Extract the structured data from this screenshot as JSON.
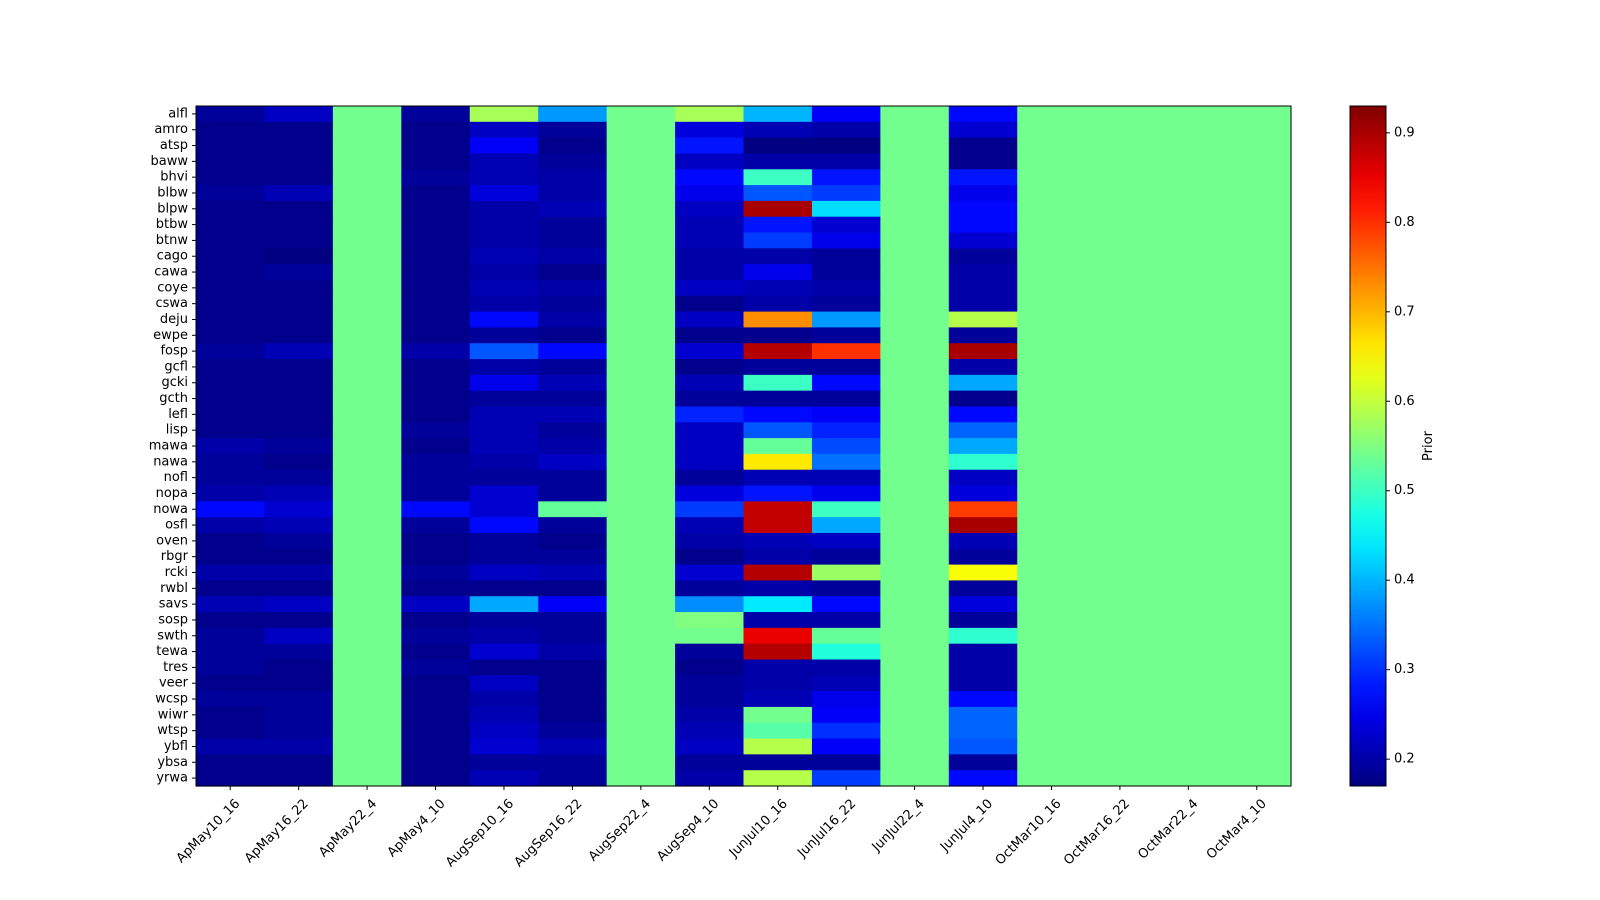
{
  "chart_data": {
    "type": "heatmap",
    "title": "",
    "xlabel": "",
    "ylabel": "",
    "colormap": "jet",
    "x_labels": [
      "ApMay10_16",
      "ApMay16_22",
      "ApMay22_4",
      "ApMay4_10",
      "AugSep10_16",
      "AugSep16_22",
      "AugSep22_4",
      "AugSep4_10",
      "JunJul10_16",
      "JunJul16_22",
      "JunJul22_4",
      "JunJul4_10",
      "OctMar10_16",
      "OctMar16_22",
      "OctMar22_4",
      "OctMar4_10"
    ],
    "y_labels": [
      "alfl",
      "amro",
      "atsp",
      "baww",
      "bhvi",
      "blbw",
      "blpw",
      "btbw",
      "btnw",
      "cago",
      "cawa",
      "coye",
      "cswa",
      "deju",
      "ewpe",
      "fosp",
      "gcfl",
      "gcki",
      "gcth",
      "lefl",
      "lisp",
      "mawa",
      "nawa",
      "nofl",
      "nopa",
      "nowa",
      "osfl",
      "oven",
      "rbgr",
      "rcki",
      "rwbl",
      "savs",
      "sosp",
      "swth",
      "tewa",
      "tres",
      "veer",
      "wcsp",
      "wiwr",
      "wtsp",
      "ybfl",
      "ybsa",
      "yrwa"
    ],
    "values": [
      [
        0.19,
        0.22,
        0.54,
        0.19,
        0.58,
        0.38,
        0.54,
        0.58,
        0.4,
        0.26,
        0.54,
        0.27,
        0.54,
        0.54,
        0.54,
        0.54
      ],
      [
        0.18,
        0.18,
        0.54,
        0.18,
        0.22,
        0.19,
        0.54,
        0.24,
        0.21,
        0.2,
        0.54,
        0.23,
        0.54,
        0.54,
        0.54,
        0.54
      ],
      [
        0.18,
        0.18,
        0.54,
        0.18,
        0.26,
        0.18,
        0.54,
        0.28,
        0.17,
        0.17,
        0.54,
        0.18,
        0.54,
        0.54,
        0.54,
        0.54
      ],
      [
        0.18,
        0.18,
        0.54,
        0.18,
        0.21,
        0.19,
        0.54,
        0.22,
        0.2,
        0.2,
        0.54,
        0.18,
        0.54,
        0.54,
        0.54,
        0.54
      ],
      [
        0.18,
        0.18,
        0.54,
        0.19,
        0.21,
        0.2,
        0.54,
        0.27,
        0.5,
        0.28,
        0.54,
        0.28,
        0.54,
        0.54,
        0.54,
        0.54
      ],
      [
        0.19,
        0.21,
        0.54,
        0.18,
        0.24,
        0.2,
        0.54,
        0.25,
        0.33,
        0.31,
        0.54,
        0.25,
        0.54,
        0.54,
        0.54,
        0.54
      ],
      [
        0.18,
        0.18,
        0.54,
        0.18,
        0.2,
        0.21,
        0.54,
        0.22,
        0.9,
        0.43,
        0.54,
        0.27,
        0.54,
        0.54,
        0.54,
        0.54
      ],
      [
        0.18,
        0.18,
        0.54,
        0.18,
        0.2,
        0.19,
        0.54,
        0.21,
        0.28,
        0.23,
        0.54,
        0.27,
        0.54,
        0.54,
        0.54,
        0.54
      ],
      [
        0.18,
        0.18,
        0.54,
        0.18,
        0.2,
        0.19,
        0.54,
        0.21,
        0.31,
        0.25,
        0.54,
        0.23,
        0.54,
        0.54,
        0.54,
        0.54
      ],
      [
        0.18,
        0.17,
        0.54,
        0.18,
        0.21,
        0.2,
        0.54,
        0.2,
        0.2,
        0.19,
        0.54,
        0.19,
        0.54,
        0.54,
        0.54,
        0.54
      ],
      [
        0.18,
        0.19,
        0.54,
        0.18,
        0.2,
        0.18,
        0.54,
        0.2,
        0.25,
        0.19,
        0.54,
        0.2,
        0.54,
        0.54,
        0.54,
        0.54
      ],
      [
        0.18,
        0.18,
        0.54,
        0.18,
        0.21,
        0.2,
        0.54,
        0.22,
        0.21,
        0.2,
        0.54,
        0.2,
        0.54,
        0.54,
        0.54,
        0.54
      ],
      [
        0.18,
        0.18,
        0.54,
        0.18,
        0.2,
        0.19,
        0.54,
        0.18,
        0.2,
        0.19,
        0.54,
        0.2,
        0.54,
        0.54,
        0.54,
        0.54
      ],
      [
        0.18,
        0.18,
        0.54,
        0.18,
        0.27,
        0.2,
        0.54,
        0.22,
        0.73,
        0.38,
        0.54,
        0.59,
        0.54,
        0.54,
        0.54,
        0.54
      ],
      [
        0.18,
        0.18,
        0.54,
        0.18,
        0.19,
        0.18,
        0.54,
        0.18,
        0.18,
        0.19,
        0.54,
        0.19,
        0.54,
        0.54,
        0.54,
        0.54
      ],
      [
        0.19,
        0.21,
        0.54,
        0.2,
        0.33,
        0.27,
        0.54,
        0.23,
        0.89,
        0.8,
        0.54,
        0.9,
        0.54,
        0.54,
        0.54,
        0.54
      ],
      [
        0.18,
        0.18,
        0.54,
        0.18,
        0.2,
        0.19,
        0.54,
        0.18,
        0.19,
        0.19,
        0.54,
        0.2,
        0.54,
        0.54,
        0.54,
        0.54
      ],
      [
        0.18,
        0.18,
        0.54,
        0.18,
        0.25,
        0.21,
        0.54,
        0.21,
        0.5,
        0.27,
        0.54,
        0.39,
        0.54,
        0.54,
        0.54,
        0.54
      ],
      [
        0.18,
        0.18,
        0.54,
        0.18,
        0.19,
        0.19,
        0.54,
        0.19,
        0.19,
        0.19,
        0.54,
        0.18,
        0.54,
        0.54,
        0.54,
        0.54
      ],
      [
        0.18,
        0.18,
        0.54,
        0.18,
        0.21,
        0.21,
        0.54,
        0.29,
        0.27,
        0.26,
        0.54,
        0.27,
        0.54,
        0.54,
        0.54,
        0.54
      ],
      [
        0.18,
        0.18,
        0.54,
        0.19,
        0.21,
        0.19,
        0.54,
        0.22,
        0.33,
        0.29,
        0.54,
        0.34,
        0.54,
        0.54,
        0.54,
        0.54
      ],
      [
        0.2,
        0.19,
        0.54,
        0.18,
        0.21,
        0.2,
        0.54,
        0.22,
        0.53,
        0.32,
        0.54,
        0.39,
        0.54,
        0.54,
        0.54,
        0.54
      ],
      [
        0.19,
        0.18,
        0.54,
        0.19,
        0.2,
        0.22,
        0.54,
        0.22,
        0.66,
        0.35,
        0.54,
        0.49,
        0.54,
        0.54,
        0.54,
        0.54
      ],
      [
        0.19,
        0.19,
        0.54,
        0.19,
        0.19,
        0.19,
        0.54,
        0.19,
        0.21,
        0.21,
        0.54,
        0.22,
        0.54,
        0.54,
        0.54,
        0.54
      ],
      [
        0.2,
        0.21,
        0.54,
        0.19,
        0.23,
        0.19,
        0.54,
        0.24,
        0.28,
        0.25,
        0.54,
        0.24,
        0.54,
        0.54,
        0.54,
        0.54
      ],
      [
        0.27,
        0.23,
        0.54,
        0.27,
        0.23,
        0.53,
        0.54,
        0.31,
        0.88,
        0.5,
        0.54,
        0.79,
        0.54,
        0.54,
        0.54,
        0.54
      ],
      [
        0.2,
        0.21,
        0.54,
        0.19,
        0.27,
        0.19,
        0.54,
        0.21,
        0.88,
        0.39,
        0.54,
        0.9,
        0.54,
        0.54,
        0.54,
        0.54
      ],
      [
        0.18,
        0.19,
        0.54,
        0.18,
        0.19,
        0.18,
        0.54,
        0.2,
        0.21,
        0.22,
        0.54,
        0.21,
        0.54,
        0.54,
        0.54,
        0.54
      ],
      [
        0.18,
        0.18,
        0.54,
        0.18,
        0.19,
        0.19,
        0.54,
        0.18,
        0.2,
        0.19,
        0.54,
        0.19,
        0.54,
        0.54,
        0.54,
        0.54
      ],
      [
        0.2,
        0.2,
        0.54,
        0.19,
        0.22,
        0.21,
        0.54,
        0.23,
        0.89,
        0.57,
        0.54,
        0.64,
        0.54,
        0.54,
        0.54,
        0.54
      ],
      [
        0.18,
        0.18,
        0.54,
        0.18,
        0.18,
        0.18,
        0.54,
        0.19,
        0.2,
        0.19,
        0.54,
        0.19,
        0.54,
        0.54,
        0.54,
        0.54
      ],
      [
        0.21,
        0.22,
        0.54,
        0.22,
        0.39,
        0.26,
        0.54,
        0.37,
        0.44,
        0.27,
        0.54,
        0.24,
        0.54,
        0.54,
        0.54,
        0.54
      ],
      [
        0.18,
        0.18,
        0.54,
        0.18,
        0.19,
        0.19,
        0.54,
        0.55,
        0.2,
        0.2,
        0.54,
        0.19,
        0.54,
        0.54,
        0.54,
        0.54
      ],
      [
        0.19,
        0.22,
        0.54,
        0.19,
        0.2,
        0.19,
        0.54,
        0.54,
        0.85,
        0.53,
        0.54,
        0.49,
        0.54,
        0.54,
        0.54,
        0.54
      ],
      [
        0.19,
        0.19,
        0.54,
        0.18,
        0.23,
        0.2,
        0.54,
        0.19,
        0.89,
        0.48,
        0.54,
        0.2,
        0.54,
        0.54,
        0.54,
        0.54
      ],
      [
        0.19,
        0.18,
        0.54,
        0.19,
        0.18,
        0.18,
        0.54,
        0.18,
        0.2,
        0.2,
        0.54,
        0.2,
        0.54,
        0.54,
        0.54,
        0.54
      ],
      [
        0.18,
        0.18,
        0.54,
        0.18,
        0.22,
        0.18,
        0.54,
        0.19,
        0.2,
        0.21,
        0.54,
        0.2,
        0.54,
        0.54,
        0.54,
        0.54
      ],
      [
        0.19,
        0.19,
        0.54,
        0.18,
        0.2,
        0.18,
        0.54,
        0.19,
        0.21,
        0.25,
        0.54,
        0.27,
        0.54,
        0.54,
        0.54,
        0.54
      ],
      [
        0.18,
        0.19,
        0.54,
        0.18,
        0.21,
        0.18,
        0.54,
        0.2,
        0.54,
        0.26,
        0.54,
        0.34,
        0.54,
        0.54,
        0.54,
        0.54
      ],
      [
        0.18,
        0.19,
        0.54,
        0.18,
        0.22,
        0.19,
        0.54,
        0.21,
        0.52,
        0.3,
        0.54,
        0.34,
        0.54,
        0.54,
        0.54,
        0.54
      ],
      [
        0.2,
        0.2,
        0.54,
        0.18,
        0.23,
        0.21,
        0.54,
        0.22,
        0.59,
        0.26,
        0.54,
        0.33,
        0.54,
        0.54,
        0.54,
        0.54
      ],
      [
        0.18,
        0.18,
        0.54,
        0.18,
        0.19,
        0.19,
        0.54,
        0.19,
        0.19,
        0.19,
        0.54,
        0.19,
        0.54,
        0.54,
        0.54,
        0.54
      ],
      [
        0.18,
        0.18,
        0.54,
        0.18,
        0.21,
        0.19,
        0.54,
        0.2,
        0.59,
        0.31,
        0.54,
        0.27,
        0.54,
        0.54,
        0.54,
        0.54
      ]
    ],
    "colorbar": {
      "label": "Prior",
      "vmin": 0.17,
      "vmax": 0.93,
      "ticks": [
        0.2,
        0.3,
        0.4,
        0.5,
        0.6,
        0.7,
        0.8,
        0.9
      ],
      "tick_labels": [
        "0.2",
        "0.3",
        "0.4",
        "0.5",
        "0.6",
        "0.7",
        "0.8",
        "0.9"
      ]
    }
  }
}
